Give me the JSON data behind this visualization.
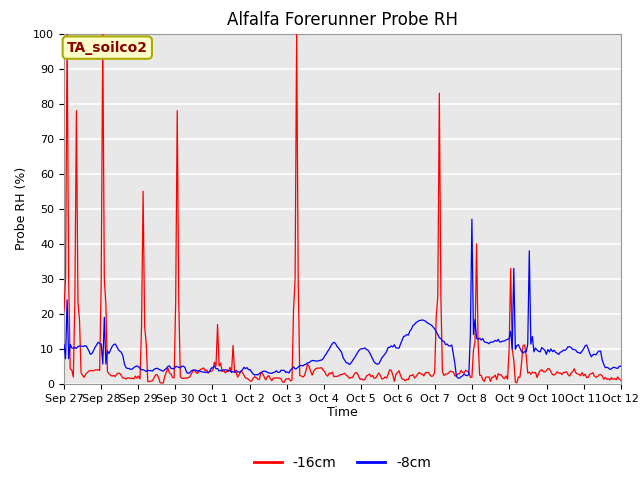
{
  "title": "Alfalfa Forerunner Probe RH",
  "ylabel": "Probe RH (%)",
  "xlabel": "Time",
  "annotation": "TA_soilco2",
  "annotation_color": "#8B0000",
  "annotation_bg": "#FFFFCC",
  "annotation_border": "#AAAA00",
  "ylim": [
    0,
    100
  ],
  "yticks": [
    0,
    10,
    20,
    30,
    40,
    50,
    60,
    70,
    80,
    90,
    100
  ],
  "legend_labels": [
    "-16cm",
    "-8cm"
  ],
  "legend_colors": [
    "red",
    "blue"
  ],
  "bg_color": "#E8E8E8",
  "grid_color": "white",
  "tick_labels": [
    "Sep 27",
    "Sep 28",
    "Sep 29",
    "Sep 30",
    "Oct 1",
    "Oct 2",
    "Oct 3",
    "Oct 4",
    "Oct 5",
    "Oct 6",
    "Oct 7",
    "Oct 8",
    "Oct 9",
    "Oct 10",
    "Oct 11",
    "Oct 12"
  ],
  "title_fontsize": 12,
  "axis_fontsize": 9,
  "tick_fontsize": 8,
  "legend_fontsize": 10
}
